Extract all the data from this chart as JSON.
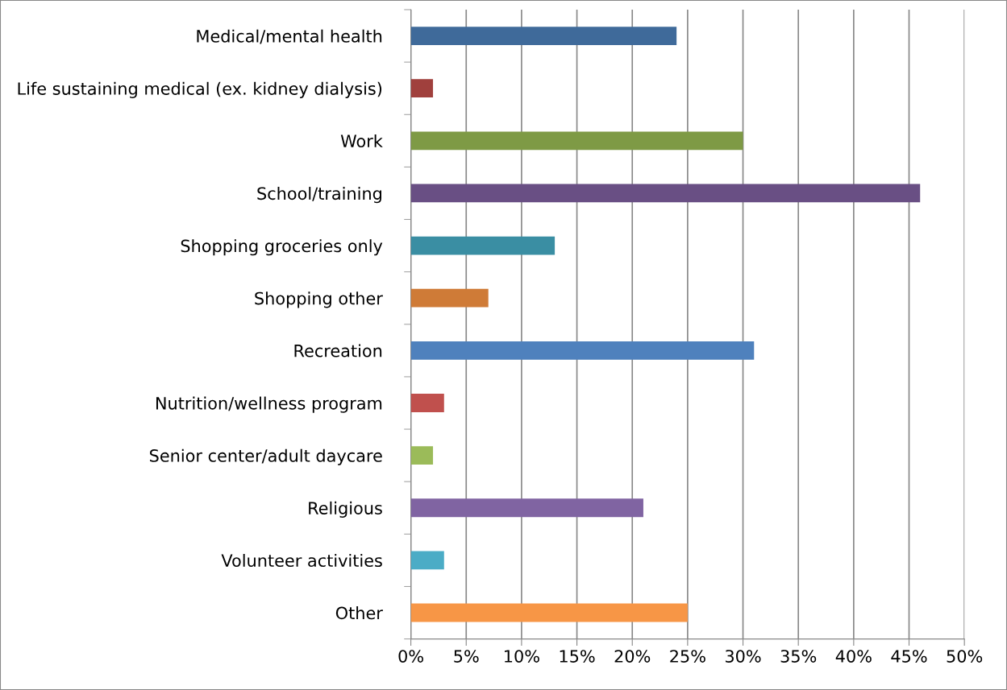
{
  "chart_data": {
    "type": "bar",
    "orientation": "horizontal",
    "categories": [
      "Medical/mental health",
      "Life sustaining medical (ex. kidney dialysis)",
      "Work",
      "School/training",
      "Shopping groceries only",
      "Shopping other",
      "Recreation",
      "Nutrition/wellness program",
      "Senior center/adult daycare",
      "Religious",
      "Volunteer activities",
      "Other"
    ],
    "values": [
      24,
      2,
      30,
      46,
      13,
      7,
      31,
      3,
      2,
      21,
      3,
      25
    ],
    "colors": [
      "#3f6a9a",
      "#a0403d",
      "#7e9a45",
      "#694f84",
      "#3a8ea3",
      "#cf7b37",
      "#4f81bd",
      "#c0504d",
      "#9bbb59",
      "#8064a2",
      "#4bacc6",
      "#f79646"
    ],
    "xlim": [
      0,
      50
    ],
    "xticks": [
      {
        "value": 0,
        "label": "0%"
      },
      {
        "value": 5,
        "label": "5%"
      },
      {
        "value": 10,
        "label": "10%"
      },
      {
        "value": 15,
        "label": "15%"
      },
      {
        "value": 20,
        "label": "20%"
      },
      {
        "value": 25,
        "label": "25%"
      },
      {
        "value": 30,
        "label": "30%"
      },
      {
        "value": 35,
        "label": "35%"
      },
      {
        "value": 40,
        "label": "40%"
      },
      {
        "value": 45,
        "label": "45%"
      },
      {
        "value": 50,
        "label": "50%"
      }
    ],
    "grid": "x",
    "legend": false
  }
}
